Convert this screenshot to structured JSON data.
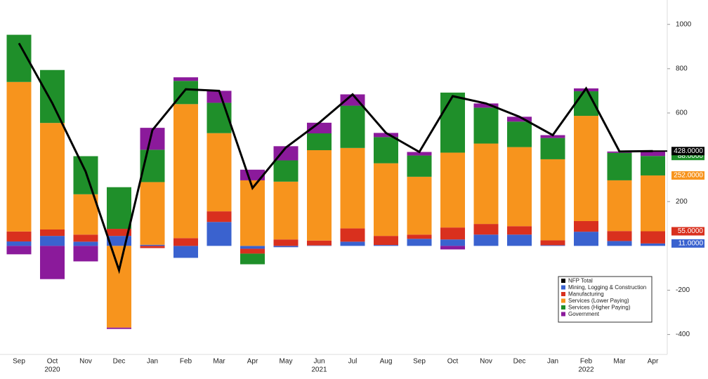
{
  "chart_data": {
    "type": "bar",
    "stacked": true,
    "categories": [
      "Sep",
      "Oct",
      "Nov",
      "Dec",
      "Jan",
      "Feb",
      "Mar",
      "Apr",
      "May",
      "Jun",
      "Jul",
      "Aug",
      "Sep",
      "Oct",
      "Nov",
      "Dec",
      "Jan",
      "Feb",
      "Mar",
      "Apr"
    ],
    "year_labels": [
      null,
      "2020",
      null,
      null,
      null,
      null,
      null,
      null,
      null,
      "2021",
      null,
      null,
      null,
      null,
      null,
      null,
      null,
      "2022",
      null,
      null
    ],
    "series": [
      {
        "name": "NFP Total",
        "type": "line",
        "color": "#000000",
        "values": [
          915,
          644,
          335,
          -110,
          523,
          707,
          700,
          261,
          444,
          556,
          684,
          510,
          424,
          676,
          643,
          583,
          500,
          711,
          426,
          428
        ],
        "value_labels": [
          null,
          null,
          null,
          null,
          null,
          null,
          null,
          null,
          null,
          null,
          null,
          null,
          null,
          null,
          null,
          null,
          null,
          null,
          null,
          "428.0000"
        ]
      },
      {
        "name": "Mining, Logging & Construction",
        "color": "#3a62cf",
        "values": [
          20,
          45,
          19,
          45,
          5,
          -54,
          108,
          -13,
          -6,
          2,
          19,
          4,
          32,
          29,
          51,
          51,
          3,
          64,
          22,
          11
        ],
        "value_labels": [
          null,
          null,
          null,
          null,
          null,
          null,
          null,
          null,
          null,
          null,
          null,
          null,
          null,
          null,
          null,
          null,
          null,
          null,
          null,
          "11.0000"
        ]
      },
      {
        "name": "Manufacturing",
        "color": "#d9301e",
        "values": [
          45,
          29,
          32,
          32,
          -10,
          35,
          48,
          -22,
          29,
          22,
          60,
          41,
          19,
          54,
          48,
          38,
          22,
          48,
          45,
          55
        ],
        "value_labels": [
          null,
          null,
          null,
          null,
          null,
          null,
          null,
          null,
          null,
          null,
          null,
          null,
          null,
          null,
          null,
          null,
          null,
          null,
          null,
          "55.0000"
        ]
      },
      {
        "name": "Services (Lower Paying)",
        "color": "#f7941d",
        "values": [
          675,
          481,
          182,
          -369,
          283,
          605,
          353,
          296,
          261,
          408,
          363,
          328,
          261,
          338,
          363,
          357,
          366,
          475,
          229,
          252
        ],
        "value_labels": [
          null,
          null,
          null,
          null,
          null,
          null,
          null,
          null,
          null,
          null,
          null,
          null,
          null,
          null,
          null,
          null,
          null,
          null,
          null,
          "252.0000"
        ]
      },
      {
        "name": "Services (Higher Paying)",
        "color": "#1f8f2a",
        "values": [
          213,
          239,
          172,
          188,
          146,
          105,
          137,
          -48,
          96,
          76,
          191,
          118,
          96,
          271,
          162,
          115,
          96,
          111,
          124,
          88
        ],
        "value_labels": [
          null,
          null,
          null,
          null,
          null,
          null,
          null,
          null,
          null,
          null,
          null,
          null,
          null,
          null,
          null,
          null,
          null,
          null,
          null,
          "88.0000"
        ]
      },
      {
        "name": "Government",
        "color": "#8b1a9b",
        "values": [
          -38,
          -150,
          -70,
          -6,
          99,
          16,
          54,
          48,
          64,
          48,
          51,
          19,
          16,
          -16,
          19,
          22,
          13,
          13,
          6,
          22
        ]
      }
    ],
    "ylim": [
      -490,
      1110
    ],
    "yticks": [
      -400,
      -200,
      200,
      600,
      800,
      1000
    ],
    "legend": "lower right"
  }
}
